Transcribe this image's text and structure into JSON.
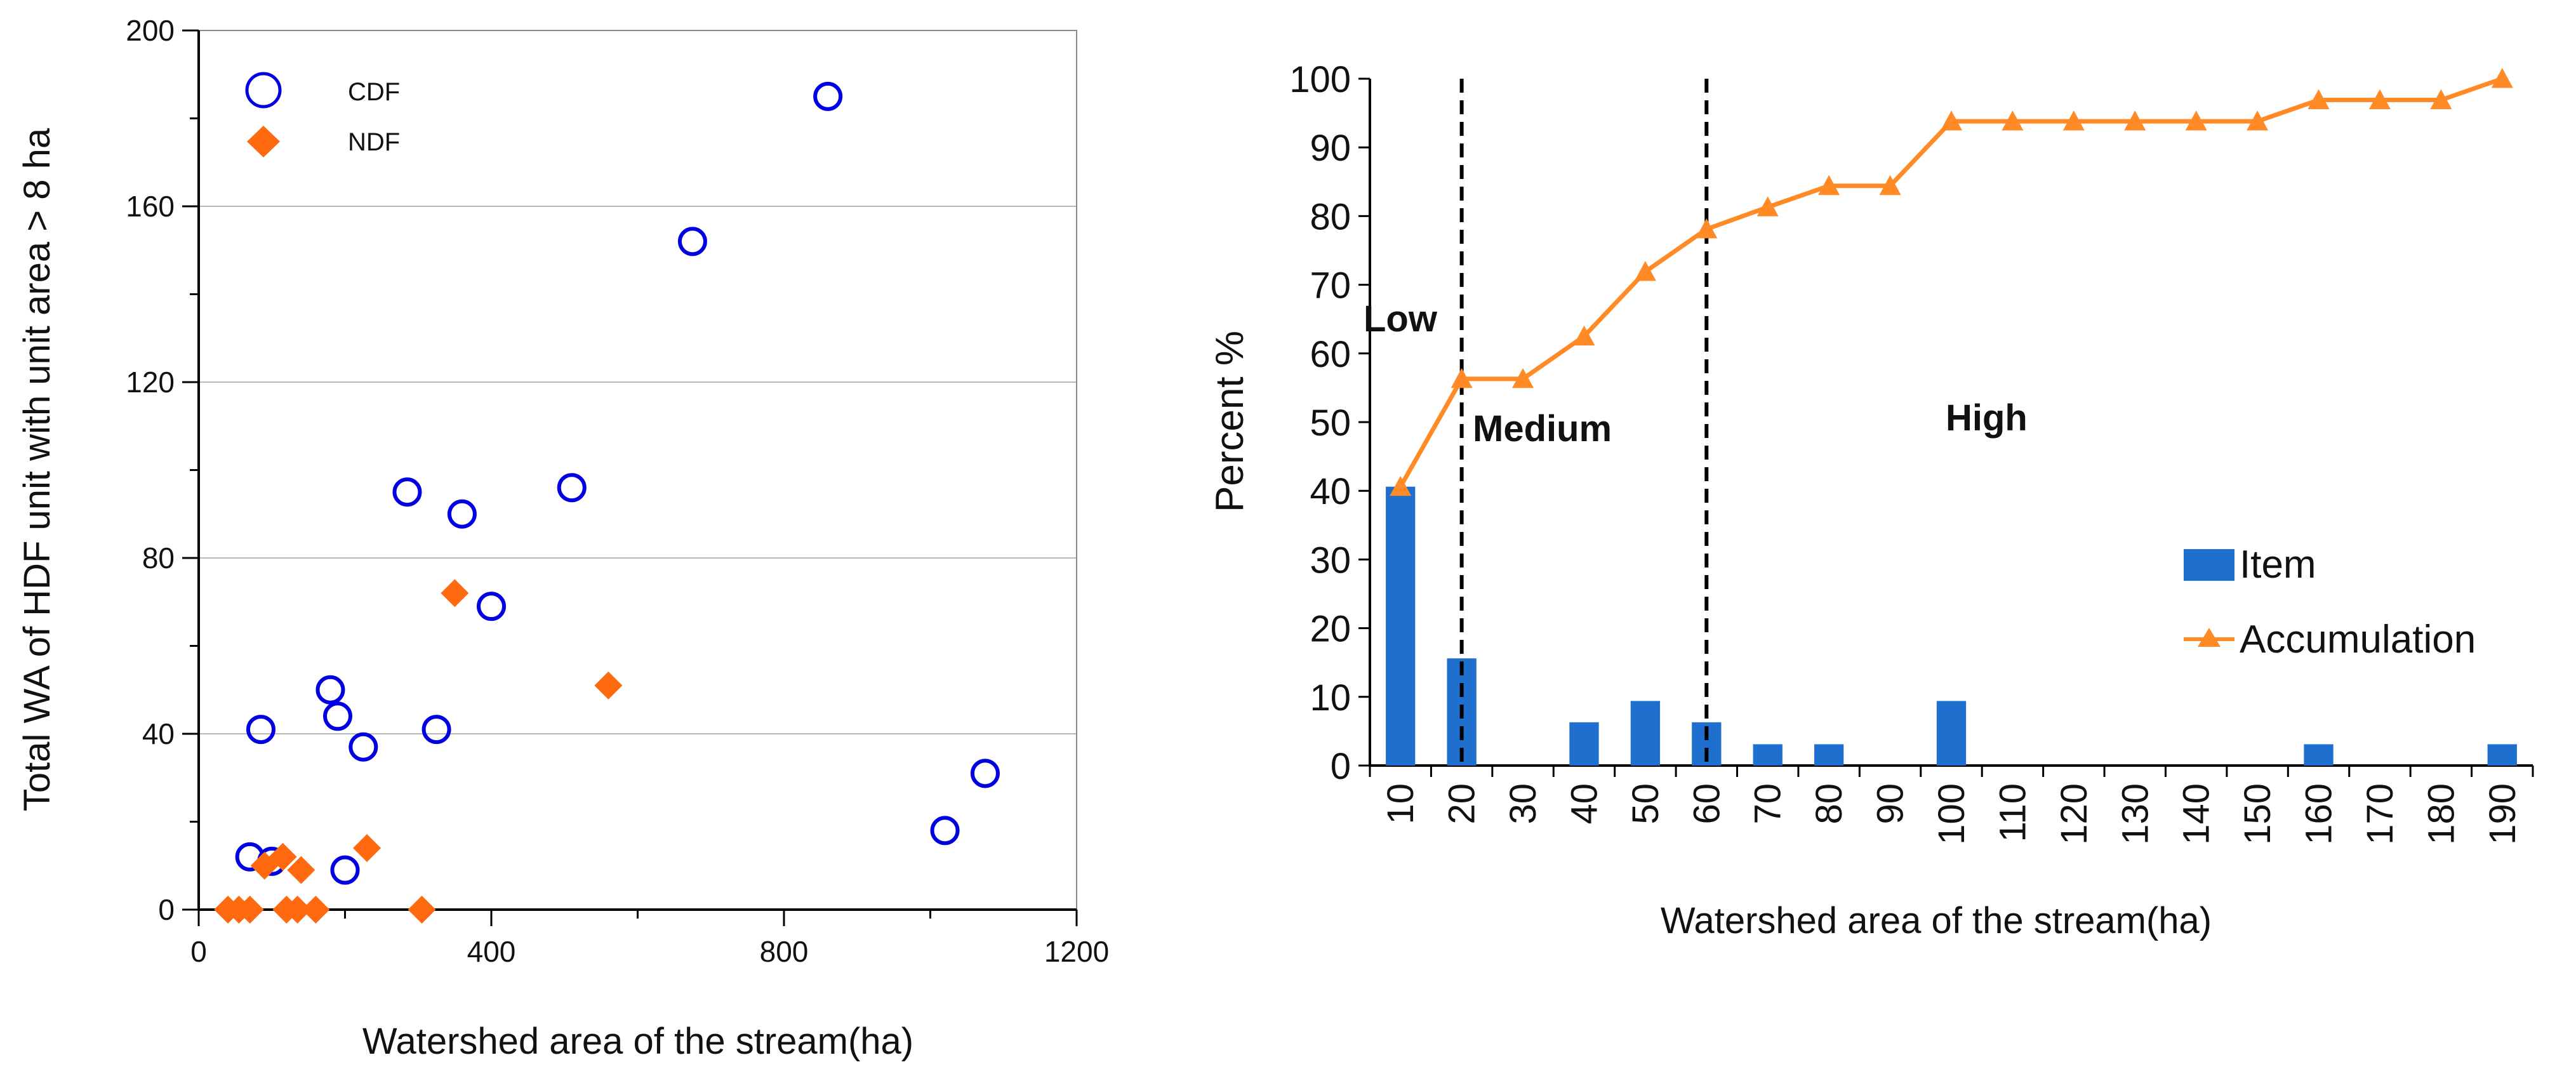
{
  "chart_data": [
    {
      "type": "scatter",
      "title": "",
      "xlabel": "Watershed area of the stream(ha)",
      "ylabel": "Total WA of HDF unit with unit area  > 8 ha",
      "xlim": [
        0,
        1200
      ],
      "ylim": [
        0,
        200
      ],
      "xticks": [
        "0",
        "400",
        "800",
        "1200"
      ],
      "yticks": [
        "0",
        "40",
        "80",
        "120",
        "160",
        "200"
      ],
      "grid": "horizontal",
      "legend_position": "top-left",
      "series": [
        {
          "name": "CDF",
          "marker": "open-circle",
          "color": "#0000e0",
          "points": [
            [
              70,
              12
            ],
            [
              85,
              41
            ],
            [
              100,
              11
            ],
            [
              180,
              50
            ],
            [
              190,
              44
            ],
            [
              200,
              9
            ],
            [
              225,
              37
            ],
            [
              285,
              95
            ],
            [
              325,
              41
            ],
            [
              360,
              90
            ],
            [
              400,
              69
            ],
            [
              510,
              96
            ],
            [
              675,
              152
            ],
            [
              860,
              185
            ],
            [
              1020,
              18
            ],
            [
              1075,
              31
            ]
          ]
        },
        {
          "name": "NDF",
          "marker": "filled-diamond",
          "color": "#ff6a10",
          "points": [
            [
              40,
              0
            ],
            [
              55,
              0
            ],
            [
              70,
              0
            ],
            [
              90,
              10
            ],
            [
              115,
              12
            ],
            [
              120,
              0
            ],
            [
              135,
              0
            ],
            [
              140,
              9
            ],
            [
              160,
              0
            ],
            [
              230,
              14
            ],
            [
              305,
              0
            ],
            [
              350,
              72
            ],
            [
              560,
              51
            ]
          ]
        }
      ]
    },
    {
      "type": "bar",
      "title": "",
      "xlabel": "Watershed area of the stream(ha)",
      "ylabel": "Percent %",
      "ylim": [
        0,
        100
      ],
      "yticks": [
        "0",
        "10",
        "20",
        "30",
        "40",
        "50",
        "60",
        "70",
        "80",
        "90",
        "100"
      ],
      "categories": [
        "10",
        "20",
        "30",
        "40",
        "50",
        "60",
        "70",
        "80",
        "90",
        "100",
        "110",
        "120",
        "130",
        "140",
        "150",
        "160",
        "170",
        "180",
        "190"
      ],
      "legend_position": "bottom-right",
      "series": [
        {
          "name": "Item",
          "type": "bar",
          "color": "#1f6fce",
          "values": [
            40.6,
            15.6,
            0,
            6.3,
            9.4,
            6.3,
            3.1,
            3.1,
            0,
            9.4,
            0,
            0,
            0,
            0,
            0,
            3.1,
            0,
            0,
            3.1
          ]
        },
        {
          "name": "Accumulation",
          "type": "line",
          "marker": "triangle",
          "color": "#ff8a26",
          "values": [
            40.6,
            56.3,
            56.3,
            62.5,
            71.9,
            78.1,
            81.3,
            84.4,
            84.4,
            93.8,
            93.8,
            93.8,
            93.8,
            93.8,
            93.8,
            96.9,
            96.9,
            96.9,
            100
          ]
        }
      ],
      "divider_positions": [
        1.5,
        5.5
      ],
      "annotations": [
        "Low",
        "Medium",
        "High"
      ]
    }
  ]
}
